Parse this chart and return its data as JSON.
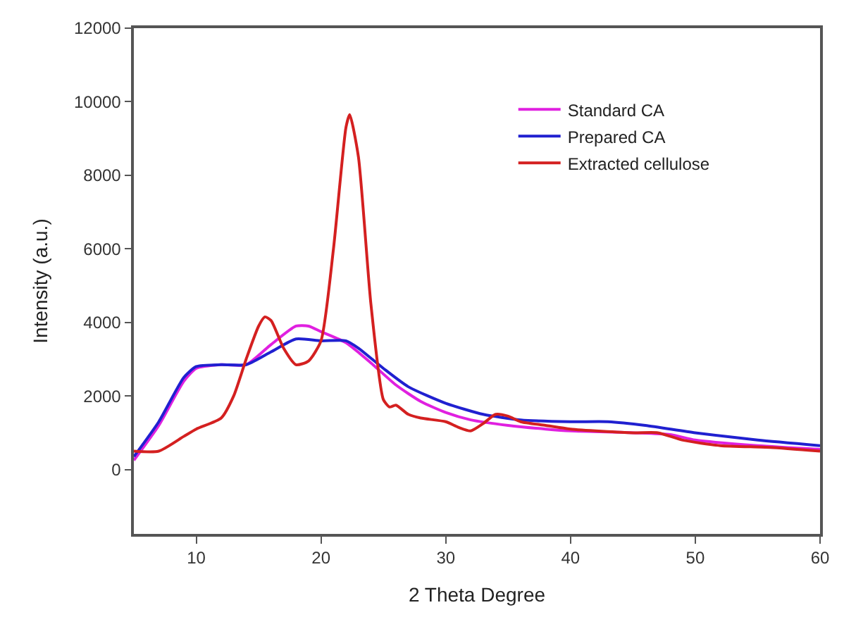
{
  "chart_data": {
    "type": "line",
    "xlabel": "2 Theta Degree",
    "ylabel": "Intensity (a.u.)",
    "xlim": [
      5,
      60
    ],
    "ylim": [
      -1750,
      12000
    ],
    "xticks": [
      10,
      20,
      30,
      40,
      50,
      60
    ],
    "yticks": [
      0,
      2000,
      4000,
      6000,
      8000,
      10000,
      12000
    ],
    "legend": "top right",
    "marker": "none",
    "line_style": "solid",
    "series": [
      {
        "name": "Standard CA",
        "color": "#e020e0",
        "x": [
          5,
          7,
          9,
          10,
          12,
          14,
          16,
          18,
          19,
          20,
          22,
          24,
          26,
          28,
          30,
          32,
          35,
          38,
          40,
          45,
          48,
          50,
          55,
          60
        ],
        "values": [
          250,
          1200,
          2400,
          2750,
          2850,
          2850,
          3400,
          3900,
          3900,
          3750,
          3450,
          2900,
          2300,
          1850,
          1550,
          1350,
          1200,
          1100,
          1050,
          1000,
          950,
          800,
          650,
          550
        ]
      },
      {
        "name": "Prepared CA",
        "color": "#2020d0",
        "x": [
          5,
          7,
          9,
          10,
          12,
          14,
          16,
          18,
          20,
          22,
          23,
          25,
          27,
          30,
          33,
          36,
          40,
          43,
          46,
          50,
          55,
          60
        ],
        "values": [
          350,
          1300,
          2500,
          2800,
          2850,
          2850,
          3200,
          3550,
          3500,
          3500,
          3300,
          2750,
          2250,
          1800,
          1500,
          1350,
          1300,
          1300,
          1200,
          1000,
          800,
          650
        ]
      },
      {
        "name": "Extracted cellulose",
        "color": "#d42020",
        "x": [
          5,
          7,
          9,
          10,
          12,
          13,
          14,
          15,
          15.5,
          16,
          17,
          18,
          19,
          20,
          21,
          22,
          22.3,
          23,
          24,
          25,
          25.5,
          26,
          27,
          28,
          30,
          31,
          32,
          33,
          34,
          35,
          36,
          38,
          40,
          45,
          47,
          49,
          52,
          56,
          60
        ],
        "values": [
          500,
          500,
          900,
          1100,
          1400,
          2000,
          3000,
          3900,
          4150,
          4050,
          3300,
          2850,
          2950,
          3500,
          6000,
          9300,
          9650,
          8500,
          4500,
          1900,
          1700,
          1750,
          1500,
          1400,
          1300,
          1150,
          1050,
          1250,
          1500,
          1450,
          1300,
          1200,
          1100,
          1000,
          1000,
          800,
          650,
          600,
          500
        ]
      }
    ]
  }
}
